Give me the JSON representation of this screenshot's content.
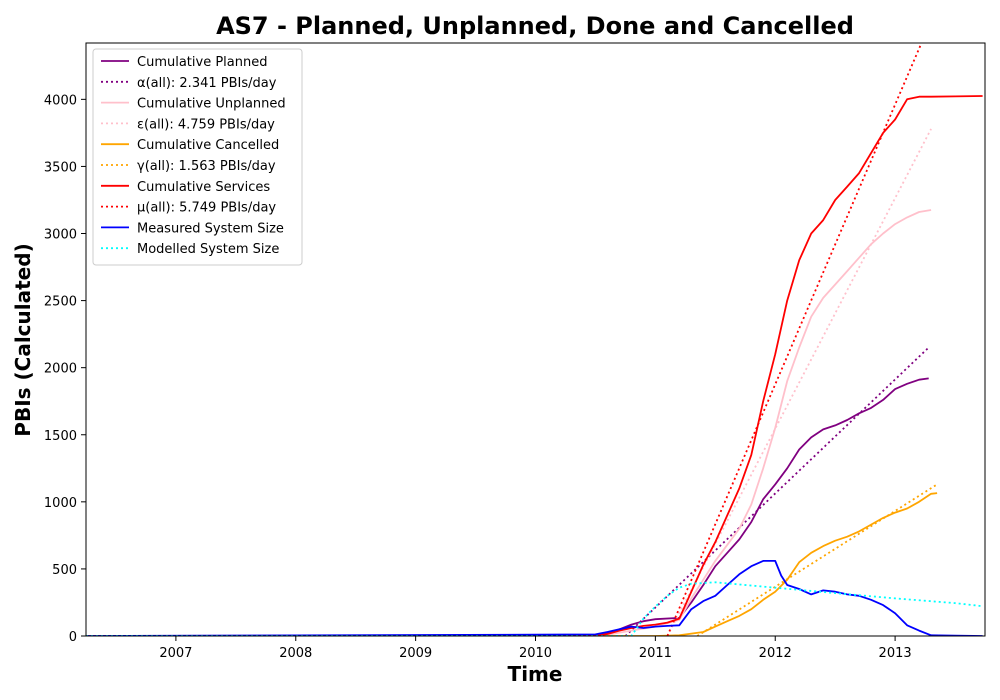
{
  "chart_data": {
    "type": "line",
    "title": "AS7 - Planned, Unplanned, Done  and Cancelled",
    "xlabel": "Time",
    "ylabel": "PBIs (Calculated)",
    "xlim": [
      2006.25,
      2013.75
    ],
    "ylim": [
      0,
      4420
    ],
    "x_ticks": [
      2007,
      2008,
      2009,
      2010,
      2011,
      2012,
      2013
    ],
    "x_tick_labels": [
      "2007",
      "2008",
      "2009",
      "2010",
      "2011",
      "2012",
      "2013"
    ],
    "y_ticks": [
      0,
      500,
      1000,
      1500,
      2000,
      2500,
      3000,
      3500,
      4000
    ],
    "y_tick_labels": [
      "0",
      "500",
      "1000",
      "1500",
      "2000",
      "2500",
      "3000",
      "3500",
      "4000"
    ],
    "grid": false,
    "legend_position": "top-left",
    "series": [
      {
        "name": "Cumulative Planned",
        "color": "#800080",
        "style": "solid",
        "x": [
          2006.25,
          2010.5,
          2010.6,
          2010.7,
          2010.8,
          2010.9,
          2011.0,
          2011.2,
          2011.3,
          2011.4,
          2011.5,
          2011.6,
          2011.7,
          2011.8,
          2011.9,
          2012.0,
          2012.1,
          2012.2,
          2012.3,
          2012.4,
          2012.5,
          2012.6,
          2012.7,
          2012.8,
          2012.9,
          2013.0,
          2013.1,
          2013.2,
          2013.28
        ],
        "y": [
          0,
          5,
          20,
          50,
          85,
          110,
          125,
          135,
          250,
          380,
          520,
          620,
          720,
          850,
          1020,
          1130,
          1250,
          1390,
          1480,
          1540,
          1570,
          1610,
          1660,
          1700,
          1760,
          1840,
          1880,
          1910,
          1920
        ]
      },
      {
        "name": "α(all): 2.341 PBIs/day",
        "color": "#800080",
        "style": "dotted",
        "x": [
          2010.75,
          2013.28
        ],
        "y": [
          0,
          2150
        ]
      },
      {
        "name": "Cumulative Unplanned",
        "color": "#ffc0cb",
        "style": "solid",
        "x": [
          2006.25,
          2010.5,
          2010.6,
          2010.7,
          2010.8,
          2010.9,
          2011.0,
          2011.2,
          2011.3,
          2011.4,
          2011.5,
          2011.6,
          2011.7,
          2011.8,
          2011.9,
          2012.0,
          2012.1,
          2012.2,
          2012.3,
          2012.4,
          2012.5,
          2012.6,
          2012.7,
          2012.8,
          2012.9,
          2013.0,
          2013.1,
          2013.2,
          2013.3
        ],
        "y": [
          0,
          2,
          10,
          25,
          40,
          55,
          70,
          120,
          280,
          420,
          560,
          680,
          800,
          980,
          1250,
          1550,
          1900,
          2150,
          2380,
          2520,
          2620,
          2720,
          2820,
          2920,
          3000,
          3070,
          3120,
          3160,
          3175
        ]
      },
      {
        "name": "ε(all): 4.759 PBIs/day",
        "color": "#ffc0cb",
        "style": "dotted",
        "x": [
          2011.1,
          2013.3
        ],
        "y": [
          0,
          3780
        ]
      },
      {
        "name": "Cumulative Cancelled",
        "color": "#ffa500",
        "style": "solid",
        "x": [
          2006.25,
          2011.0,
          2011.2,
          2011.4,
          2011.5,
          2011.6,
          2011.7,
          2011.8,
          2011.9,
          2012.0,
          2012.1,
          2012.2,
          2012.3,
          2012.4,
          2012.5,
          2012.6,
          2012.7,
          2012.8,
          2012.9,
          2013.0,
          2013.1,
          2013.2,
          2013.3,
          2013.35
        ],
        "y": [
          0,
          0,
          5,
          30,
          70,
          110,
          150,
          200,
          270,
          330,
          420,
          550,
          620,
          670,
          710,
          740,
          780,
          830,
          880,
          920,
          950,
          1000,
          1060,
          1065
        ]
      },
      {
        "name": "γ(all): 1.563 PBIs/day",
        "color": "#ffa500",
        "style": "dotted",
        "x": [
          2011.35,
          2013.35
        ],
        "y": [
          0,
          1130
        ]
      },
      {
        "name": "Cumulative Services",
        "color": "#ff0000",
        "style": "solid",
        "x": [
          2006.25,
          2010.5,
          2010.6,
          2010.7,
          2010.8,
          2010.9,
          2011.0,
          2011.1,
          2011.2,
          2011.3,
          2011.4,
          2011.5,
          2011.6,
          2011.7,
          2011.8,
          2011.9,
          2012.0,
          2012.1,
          2012.2,
          2012.3,
          2012.4,
          2012.5,
          2012.6,
          2012.7,
          2012.8,
          2012.9,
          2013.0,
          2013.1,
          2013.2,
          2013.3,
          2013.5,
          2013.73
        ],
        "y": [
          0,
          3,
          15,
          40,
          60,
          75,
          85,
          100,
          130,
          330,
          530,
          700,
          900,
          1100,
          1350,
          1750,
          2100,
          2500,
          2800,
          3000,
          3100,
          3250,
          3350,
          3450,
          3600,
          3750,
          3850,
          4000,
          4020,
          4020,
          4022,
          4025
        ]
      },
      {
        "name": "μ(all): 5.749 PBIs/day",
        "color": "#ff0000",
        "style": "dotted",
        "x": [
          2011.1,
          2013.22
        ],
        "y": [
          0,
          4420
        ]
      },
      {
        "name": "Measured System Size",
        "color": "#0000ff",
        "style": "solid",
        "x": [
          2006.25,
          2010.0,
          2010.5,
          2010.6,
          2010.7,
          2010.8,
          2010.9,
          2011.0,
          2011.1,
          2011.2,
          2011.3,
          2011.4,
          2011.5,
          2011.6,
          2011.7,
          2011.8,
          2011.9,
          2012.0,
          2012.05,
          2012.1,
          2012.2,
          2012.3,
          2012.4,
          2012.5,
          2012.6,
          2012.7,
          2012.8,
          2012.9,
          2013.0,
          2013.1,
          2013.2,
          2013.3,
          2013.5,
          2013.73
        ],
        "y": [
          0,
          10,
          12,
          30,
          50,
          70,
          60,
          70,
          75,
          80,
          200,
          260,
          300,
          380,
          460,
          520,
          560,
          560,
          450,
          380,
          350,
          310,
          340,
          330,
          310,
          300,
          270,
          230,
          170,
          80,
          40,
          5,
          2,
          0
        ]
      },
      {
        "name": "Modelled System Size",
        "color": "#00ffff",
        "style": "dotted",
        "x": [
          2006.25,
          2010.8,
          2010.9,
          2011.0,
          2011.1,
          2011.2,
          2011.3,
          2011.5,
          2012.0,
          2012.5,
          2013.0,
          2013.5,
          2013.73
        ],
        "y": [
          0,
          0,
          130,
          220,
          300,
          360,
          390,
          400,
          360,
          320,
          280,
          245,
          222
        ]
      }
    ]
  }
}
